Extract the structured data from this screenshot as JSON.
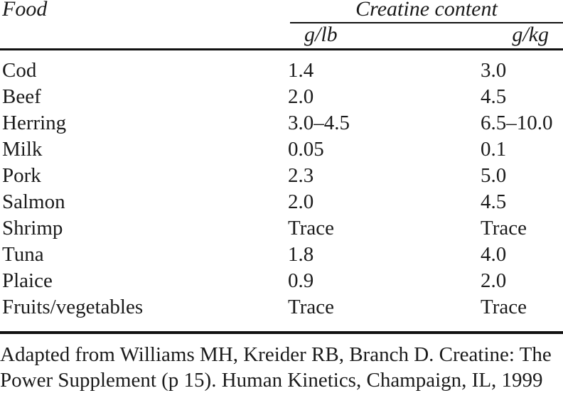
{
  "table": {
    "col_food_header": "Food",
    "col_group_header": "Creatine content",
    "col_sub_headers": [
      "g/lb",
      "g/kg"
    ],
    "rows": [
      {
        "food": "Cod",
        "g_lb": "1.4",
        "g_kg": "3.0"
      },
      {
        "food": "Beef",
        "g_lb": "2.0",
        "g_kg": "4.5"
      },
      {
        "food": "Herring",
        "g_lb": "3.0–4.5",
        "g_kg": "6.5–10.0"
      },
      {
        "food": "Milk",
        "g_lb": "0.05",
        "g_kg": "0.1"
      },
      {
        "food": "Pork",
        "g_lb": "2.3",
        "g_kg": "5.0"
      },
      {
        "food": "Salmon",
        "g_lb": "2.0",
        "g_kg": "4.5"
      },
      {
        "food": "Shrimp",
        "g_lb": "Trace",
        "g_kg": "Trace"
      },
      {
        "food": "Tuna",
        "g_lb": "1.8",
        "g_kg": "4.0"
      },
      {
        "food": "Plaice",
        "g_lb": "0.9",
        "g_kg": "2.0"
      },
      {
        "food": "Fruits/vegetables",
        "g_lb": "Trace",
        "g_kg": "Trace"
      }
    ]
  },
  "footnote": {
    "text": "Adapted from Williams MH, Kreider RB, Branch D. Creatine: The Power Supplement (p 15). Human Kinetics, Champaign, IL, 1999"
  },
  "colors": {
    "text": "#1b1b1b",
    "rule": "#111111",
    "background": "#ffffff"
  }
}
